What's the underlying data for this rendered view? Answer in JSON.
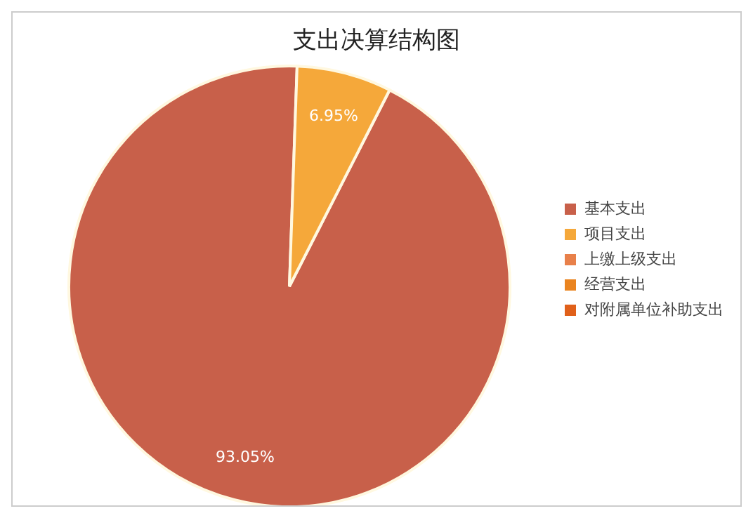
{
  "chart_data": {
    "type": "pie",
    "title": "支出决算结构图",
    "categories": [
      "基本支出",
      "项目支出",
      "上缴上级支出",
      "经营支出",
      "对附属单位补助支出"
    ],
    "values": [
      93.05,
      6.95,
      0,
      0,
      0
    ],
    "value_labels": [
      "93.05%",
      "6.95%",
      null,
      null,
      null
    ],
    "colors": [
      "#c8604a",
      "#f5a83a",
      "#e8804a",
      "#ea8420",
      "#e0601a"
    ],
    "legend": "right"
  }
}
